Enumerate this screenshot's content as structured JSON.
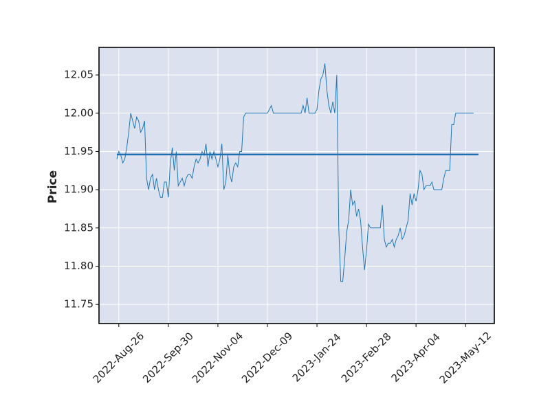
{
  "chart_data": {
    "type": "line",
    "ylabel": "Price",
    "series": [
      {
        "color": "#1f77b4",
        "values": [
          11.94,
          11.95,
          11.945,
          11.935,
          11.94,
          11.955,
          11.975,
          12.0,
          11.99,
          11.98,
          11.995,
          11.99,
          11.975,
          11.98,
          11.99,
          11.915,
          11.9,
          11.915,
          11.92,
          11.9,
          11.915,
          11.9,
          11.89,
          11.89,
          11.91,
          11.91,
          11.89,
          11.935,
          11.955,
          11.925,
          11.95,
          11.905,
          11.91,
          11.915,
          11.905,
          11.915,
          11.92,
          11.92,
          11.915,
          11.93,
          11.94,
          11.935,
          11.94,
          11.95,
          11.945,
          11.96,
          11.93,
          11.95,
          11.94,
          11.95,
          11.94,
          11.93,
          11.94,
          11.96,
          11.9,
          11.91,
          11.945,
          11.92,
          11.91,
          11.93,
          11.935,
          11.93,
          11.95,
          11.95,
          11.995,
          12.0,
          12.0,
          12.0,
          12.0,
          12.0,
          12.0,
          12.0,
          12.0,
          12.0,
          12.0,
          12.0,
          12.0,
          12.005,
          12.01,
          12.0,
          12.0,
          12.0,
          12.0,
          12.0,
          12.0,
          12.0,
          12.0,
          12.0,
          12.0,
          12.0,
          12.0,
          12.0,
          12.0,
          12.0,
          12.01,
          12.0,
          12.02,
          12.0,
          12.0,
          12.0,
          12.0,
          12.005,
          12.03,
          12.045,
          12.05,
          12.065,
          12.03,
          12.01,
          12.0,
          12.015,
          12.0,
          12.05,
          11.85,
          11.78,
          11.78,
          11.81,
          11.845,
          11.86,
          11.9,
          11.88,
          11.885,
          11.865,
          11.875,
          11.86,
          11.825,
          11.795,
          11.82,
          11.855,
          11.85,
          11.85,
          11.85,
          11.85,
          11.85,
          11.85,
          11.88,
          11.835,
          11.825,
          11.83,
          11.83,
          11.835,
          11.825,
          11.835,
          11.84,
          11.85,
          11.835,
          11.84,
          11.85,
          11.86,
          11.895,
          11.88,
          11.895,
          11.885,
          11.9,
          11.925,
          11.92,
          11.9,
          11.905,
          11.905,
          11.905,
          11.91,
          11.9,
          11.9,
          11.9,
          11.9,
          11.9,
          11.915,
          11.925,
          11.925,
          11.925,
          11.985,
          11.985,
          12.0,
          12.0,
          12.0,
          12.0,
          12.0,
          12.0,
          12.0,
          12.0,
          12.0,
          12.0
        ]
      }
    ],
    "hlines": [
      {
        "value": 11.946,
        "color": "#1f6fb0"
      }
    ],
    "xlim": [
      -9,
      190.5
    ],
    "xticks": [
      {
        "value": 1,
        "label": "2022-Aug-26"
      },
      {
        "value": 26,
        "label": "2022-Sep-30"
      },
      {
        "value": 51,
        "label": "2022-Nov-04"
      },
      {
        "value": 76,
        "label": "2022-Dec-09"
      },
      {
        "value": 101,
        "label": "2023-Jan-24"
      },
      {
        "value": 126,
        "label": "2023-Feb-28"
      },
      {
        "value": 151,
        "label": "2023-Apr-04"
      },
      {
        "value": 176,
        "label": "2023-May-12"
      }
    ],
    "ylim": [
      11.725,
      12.086
    ],
    "yticks": [
      {
        "value": 11.75,
        "label": "11.75"
      },
      {
        "value": 11.8,
        "label": "11.80"
      },
      {
        "value": 11.85,
        "label": "11.85"
      },
      {
        "value": 11.9,
        "label": "11.90"
      },
      {
        "value": 11.95,
        "label": "11.95"
      },
      {
        "value": 12.0,
        "label": "12.00"
      },
      {
        "value": 12.05,
        "label": "12.05"
      }
    ],
    "grid": true
  }
}
